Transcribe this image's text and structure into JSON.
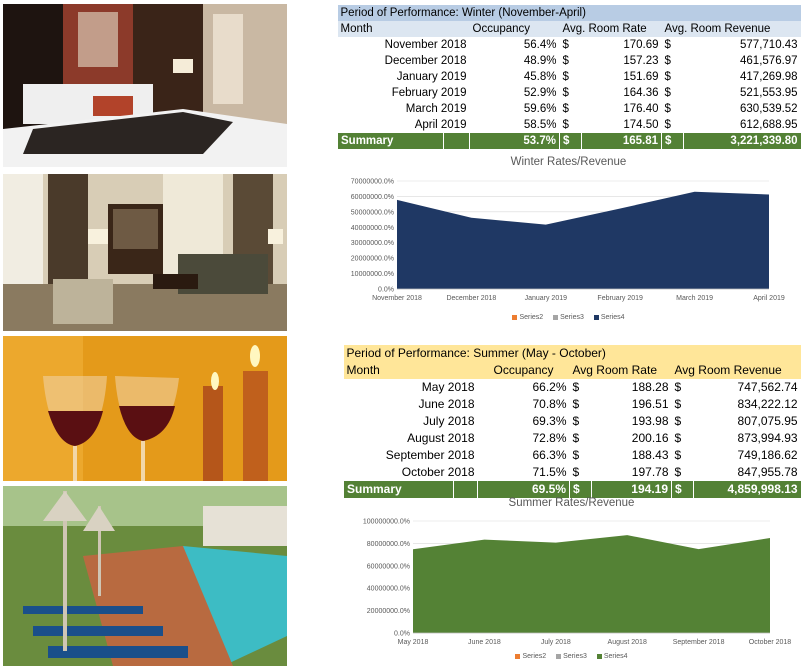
{
  "winter": {
    "title": "Period of Performance: Winter   (November-April)",
    "headers": [
      "Month",
      "Occupancy",
      "Avg. Room Rate",
      "Avg. Room Revenue"
    ],
    "rows": [
      {
        "month": "November  2018",
        "occupancy": "56.4%",
        "rate": "170.69",
        "revenue": "577,710.43"
      },
      {
        "month": "December  2018",
        "occupancy": "48.9%",
        "rate": "157.23",
        "revenue": "461,576.97"
      },
      {
        "month": "January 2019",
        "occupancy": "45.8%",
        "rate": "151.69",
        "revenue": "417,269.98"
      },
      {
        "month": "February 2019",
        "occupancy": "52.9%",
        "rate": "164.36",
        "revenue": "521,553.95"
      },
      {
        "month": "March 2019",
        "occupancy": "59.6%",
        "rate": "176.40",
        "revenue": "630,539.52"
      },
      {
        "month": "April 2019",
        "occupancy": "58.5%",
        "rate": "174.50",
        "revenue": "612,688.95"
      }
    ],
    "summary": {
      "label": "Summary",
      "occupancy": "53.7%",
      "rate": "165.81",
      "revenue": "3,221,339.80"
    },
    "currency": "$"
  },
  "summer": {
    "title": "Period of Performance: Summer   (May - October)",
    "headers": [
      "Month",
      "Occupancy",
      "Avg Room Rate",
      "Avg Room Revenue"
    ],
    "rows": [
      {
        "month": "May 2018",
        "occupancy": "66.2%",
        "rate": "188.28",
        "revenue": "747,562.74"
      },
      {
        "month": "June 2018",
        "occupancy": "70.8%",
        "rate": "196.51",
        "revenue": "834,222.12"
      },
      {
        "month": "July 2018",
        "occupancy": "69.3%",
        "rate": "193.98",
        "revenue": "807,075.95"
      },
      {
        "month": "August 2018",
        "occupancy": "72.8%",
        "rate": "200.16",
        "revenue": "873,994.93"
      },
      {
        "month": "September  2018",
        "occupancy": "66.3%",
        "rate": "188.43",
        "revenue": "749,186.62"
      },
      {
        "month": "October 2018",
        "occupancy": "71.5%",
        "rate": "197.78",
        "revenue": "847,955.78"
      }
    ],
    "summary": {
      "label": "Summary",
      "occupancy": "69.5%",
      "rate": "194.19",
      "revenue": "4,859,998.13"
    },
    "currency": "$"
  },
  "chart_data": [
    {
      "type": "area",
      "title": "Winter Rates/Revenue",
      "categories": [
        "November 2018",
        "December 2018",
        "January 2019",
        "February 2019",
        "March 2019",
        "April 2019"
      ],
      "series": [
        {
          "name": "Series4",
          "values": [
            57771043,
            46157697,
            41726998,
            52155395,
            63053952,
            61268895
          ],
          "color": "#1f3864"
        }
      ],
      "ylim": [
        0,
        70000000
      ],
      "yticks": [
        0,
        10000000,
        20000000,
        30000000,
        40000000,
        50000000,
        60000000,
        70000000
      ],
      "ytick_labels": [
        "0.0%",
        "10000000.0%",
        "20000000.0%",
        "30000000.0%",
        "40000000.0%",
        "50000000.0%",
        "60000000.0%",
        "70000000.0%"
      ],
      "legend": [
        {
          "name": "Series2",
          "color": "#ed7d31"
        },
        {
          "name": "Series3",
          "color": "#a5a5a5"
        },
        {
          "name": "Series4",
          "color": "#1f3864"
        }
      ],
      "legend_position": "bottom",
      "grid": true
    },
    {
      "type": "area",
      "title": "Summer Rates/Revenue",
      "categories": [
        "May 2018",
        "June 2018",
        "July 2018",
        "August 2018",
        "September 2018",
        "October 2018"
      ],
      "series": [
        {
          "name": "Series4",
          "values": [
            74756274,
            83422212,
            80707595,
            87399493,
            74918662,
            84795578
          ],
          "color": "#548235"
        }
      ],
      "ylim": [
        0,
        100000000
      ],
      "yticks": [
        0,
        20000000,
        40000000,
        60000000,
        80000000,
        100000000
      ],
      "ytick_labels": [
        "0.0%",
        "20000000.0%",
        "40000000.0%",
        "60000000.0%",
        "80000000.0%",
        "100000000.0%"
      ],
      "legend": [
        {
          "name": "Series2",
          "color": "#ed7d31"
        },
        {
          "name": "Series3",
          "color": "#a5a5a5"
        },
        {
          "name": "Series4",
          "color": "#548235"
        }
      ],
      "legend_position": "bottom",
      "grid": true
    }
  ]
}
